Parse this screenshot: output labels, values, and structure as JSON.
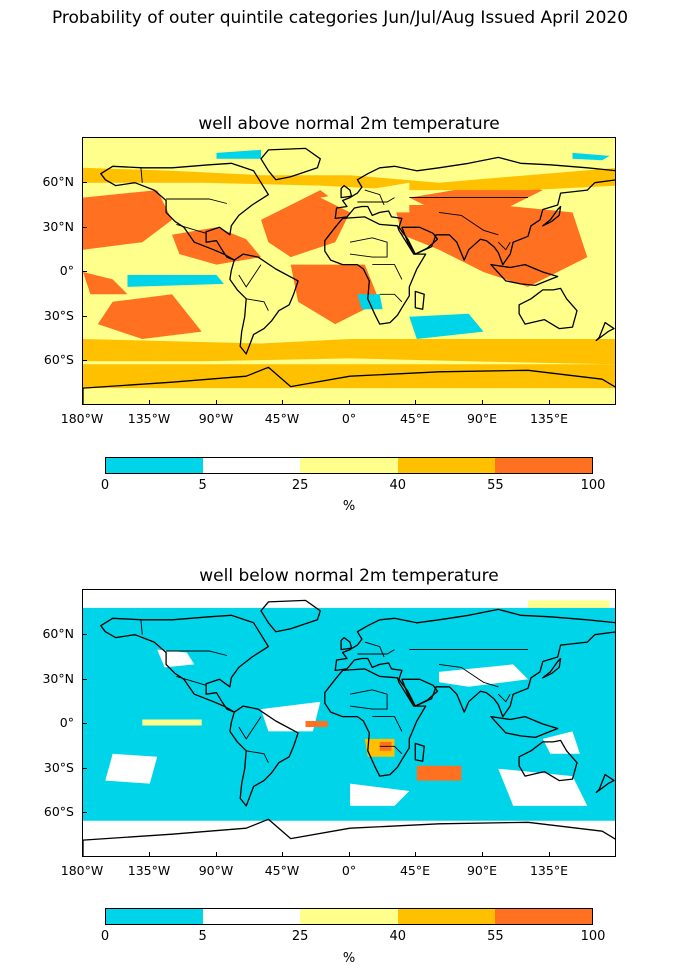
{
  "title": "Probability of outer quintile categories Jun/Jul/Aug Issued April 2020",
  "panels": [
    {
      "title": "well above normal 2m temperature",
      "dominant_category": "above"
    },
    {
      "title": "well below normal 2m temperature",
      "dominant_category": "below"
    }
  ],
  "axes": {
    "lon_labels": [
      "180°W",
      "135°W",
      "90°W",
      "45°W",
      "0°",
      "45°E",
      "90°E",
      "135°E"
    ],
    "lat_labels": [
      "60°N",
      "30°N",
      "0°",
      "30°S",
      "60°S"
    ]
  },
  "colorbar": {
    "boundaries": [
      "0",
      "5",
      "25",
      "40",
      "55",
      "100"
    ],
    "colors": [
      "#00d4e8",
      "#ffffff",
      "#ffff8c",
      "#ffc000",
      "#ff7020"
    ],
    "unit": "%"
  }
}
